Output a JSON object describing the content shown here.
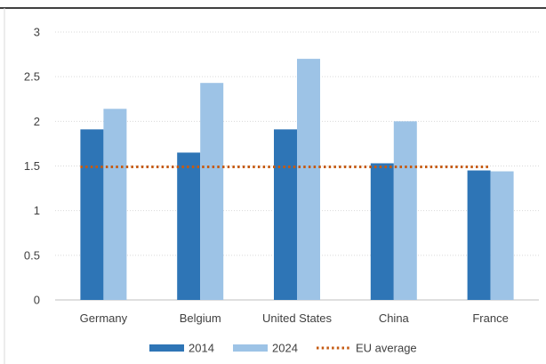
{
  "chart_data": {
    "type": "bar",
    "title": "",
    "xlabel": "",
    "ylabel": "",
    "categories": [
      "Germany",
      "Belgium",
      "United States",
      "China",
      "France"
    ],
    "series": [
      {
        "name": "2014",
        "values": [
          1.91,
          1.65,
          1.91,
          1.53,
          1.45
        ],
        "color": "#2E75B6"
      },
      {
        "name": "2024",
        "values": [
          2.14,
          2.43,
          2.7,
          2.0,
          1.44
        ],
        "color": "#9DC3E6"
      }
    ],
    "reference_line": {
      "name": "EU average",
      "value": 1.49,
      "color": "#C55A11",
      "style": "dotted"
    },
    "ylim": [
      0,
      3
    ],
    "yticks": [
      "0",
      "0.5",
      "1",
      "1.5",
      "2",
      "2.5",
      "3"
    ],
    "grid": true,
    "legend_position": "bottom"
  }
}
